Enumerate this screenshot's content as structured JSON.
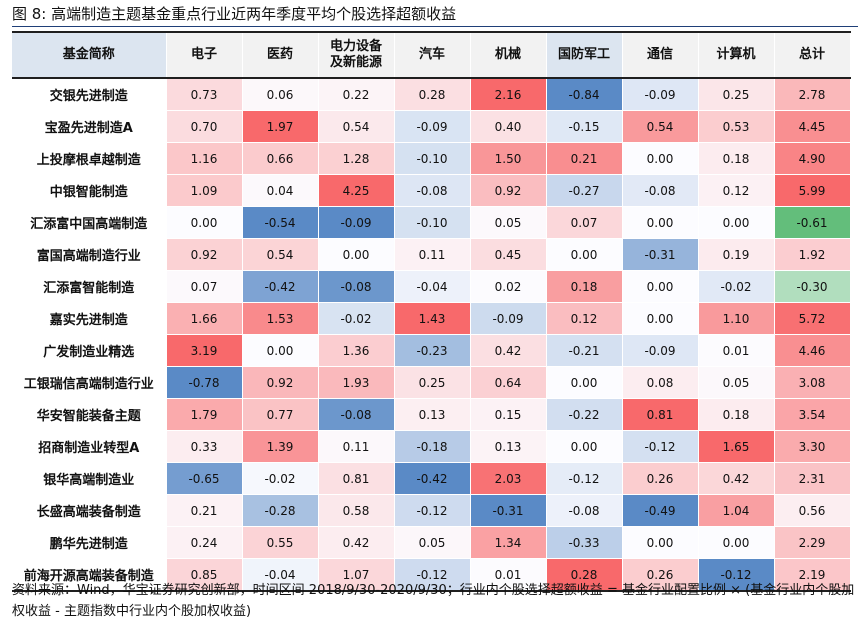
{
  "title": "图 8:  高端制造主题基金重点行业近两年季度平均个股选择超额收益",
  "table": {
    "headers": [
      "基金简称",
      "电子",
      "医药",
      "电力设备\n及新能源",
      "汽车",
      "机械",
      "国防军工",
      "通信",
      "计算机",
      "总计"
    ],
    "rows": [
      {
        "name": "交银先进制造",
        "values": [
          "0.73",
          "0.06",
          "0.22",
          "0.28",
          "2.16",
          "-0.84",
          "-0.09",
          "0.25",
          "2.78"
        ]
      },
      {
        "name": "宝盈先进制造A",
        "values": [
          "0.70",
          "1.97",
          "0.54",
          "-0.09",
          "0.40",
          "-0.15",
          "0.54",
          "0.53",
          "4.45"
        ]
      },
      {
        "name": "上投摩根卓越制造",
        "values": [
          "1.16",
          "0.66",
          "1.28",
          "-0.10",
          "1.50",
          "0.21",
          "0.00",
          "0.18",
          "4.90"
        ]
      },
      {
        "name": "中银智能制造",
        "values": [
          "1.09",
          "0.04",
          "4.25",
          "-0.08",
          "0.92",
          "-0.27",
          "-0.08",
          "0.12",
          "5.99"
        ]
      },
      {
        "name": "汇添富中国高端制造",
        "values": [
          "0.00",
          "-0.54",
          "-0.09",
          "-0.10",
          "0.05",
          "0.07",
          "0.00",
          "0.00",
          "-0.61"
        ]
      },
      {
        "name": "富国高端制造行业",
        "values": [
          "0.92",
          "0.54",
          "0.00",
          "0.11",
          "0.45",
          "0.00",
          "-0.31",
          "0.19",
          "1.92"
        ]
      },
      {
        "name": "汇添富智能制造",
        "values": [
          "0.07",
          "-0.42",
          "-0.08",
          "-0.04",
          "0.02",
          "0.18",
          "0.00",
          "-0.02",
          "-0.30"
        ]
      },
      {
        "name": "嘉实先进制造",
        "values": [
          "1.66",
          "1.53",
          "-0.02",
          "1.43",
          "-0.09",
          "0.12",
          "0.00",
          "1.10",
          "5.72"
        ]
      },
      {
        "name": "广发制造业精选",
        "values": [
          "3.19",
          "0.00",
          "1.36",
          "-0.23",
          "0.42",
          "-0.21",
          "-0.09",
          "0.01",
          "4.46"
        ]
      },
      {
        "name": "工银瑞信高端制造行业",
        "values": [
          "-0.78",
          "0.92",
          "1.93",
          "0.25",
          "0.64",
          "0.00",
          "0.08",
          "0.05",
          "3.08"
        ]
      },
      {
        "name": "华安智能装备主题",
        "values": [
          "1.79",
          "0.77",
          "-0.08",
          "0.13",
          "0.15",
          "-0.22",
          "0.81",
          "0.18",
          "3.54"
        ]
      },
      {
        "name": "招商制造业转型A",
        "values": [
          "0.33",
          "1.39",
          "0.11",
          "-0.18",
          "0.13",
          "0.00",
          "-0.12",
          "1.65",
          "3.30"
        ]
      },
      {
        "name": "银华高端制造业",
        "values": [
          "-0.65",
          "-0.02",
          "0.81",
          "-0.42",
          "2.03",
          "-0.12",
          "0.26",
          "0.42",
          "2.31"
        ]
      },
      {
        "name": "长盛高端装备制造",
        "values": [
          "0.21",
          "-0.28",
          "0.58",
          "-0.12",
          "-0.31",
          "-0.08",
          "-0.49",
          "1.04",
          "0.56"
        ]
      },
      {
        "name": "鹏华先进制造",
        "values": [
          "0.24",
          "0.55",
          "0.42",
          "0.05",
          "1.34",
          "-0.33",
          "0.00",
          "0.00",
          "2.29"
        ]
      },
      {
        "name": "前海开源高端装备制造",
        "values": [
          "0.85",
          "-0.04",
          "1.07",
          "-0.12",
          "0.01",
          "0.28",
          "0.26",
          "-0.12",
          "2.19"
        ]
      }
    ]
  },
  "colors": {
    "header_bg": "#f2f2f2",
    "header_highlight_bg": "#dce5f0",
    "positive": "#f8696b",
    "negative": "#5a8ac6",
    "total_positive": "#f8696b",
    "total_negative": "#63be7b",
    "neutral": "#fcfcff"
  },
  "note": "资料来源：Wind，华宝证券研究创新部，时间区间 2018/9/30-2020/9/30；行业内个股选择超额收益 = 基金行业配置比例 × (基金行业内个股加权收益 - 主题指数中行业内个股加权收益)"
}
